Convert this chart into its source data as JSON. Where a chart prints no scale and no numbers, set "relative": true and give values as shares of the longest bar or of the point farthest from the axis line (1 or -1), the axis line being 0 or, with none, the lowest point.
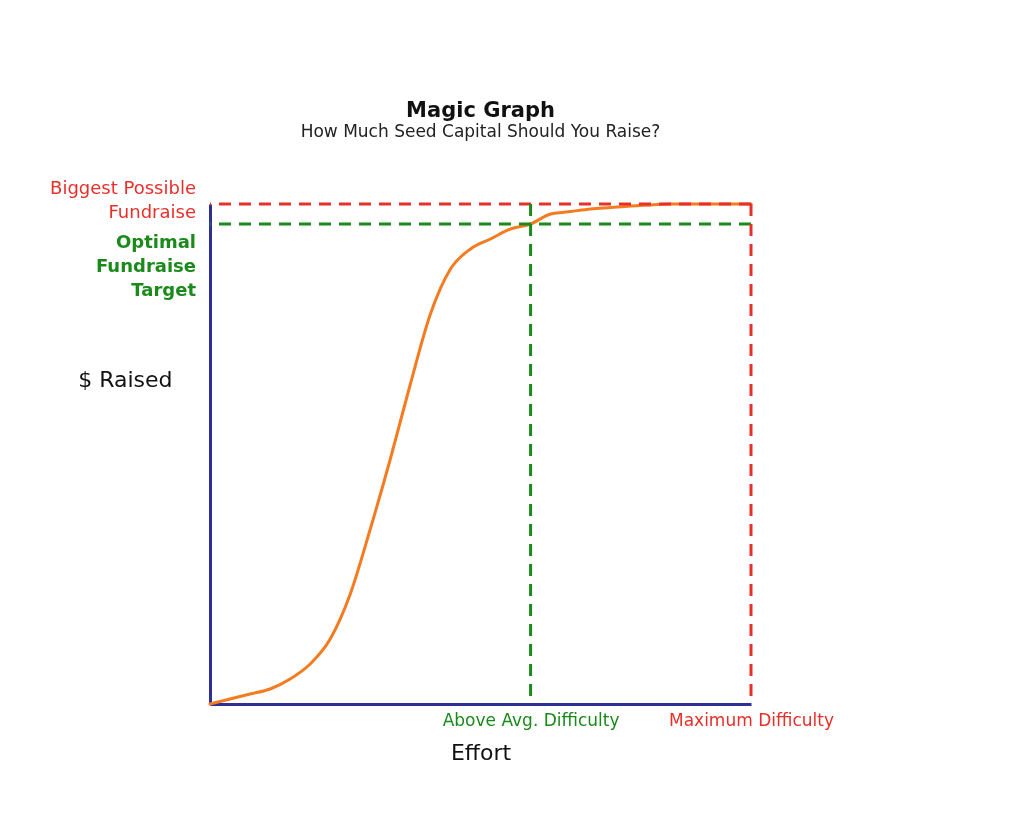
{
  "chart_data": {
    "type": "line",
    "title": "Magic Graph",
    "subtitle": "How Much Seed Capital Should You Raise?",
    "xlabel": "Effort",
    "ylabel": "$ Raised",
    "relative": true,
    "categories": [
      null,
      null,
      null,
      null,
      null,
      null,
      null,
      null,
      null,
      null,
      null,
      null,
      null,
      null,
      null,
      null,
      "Above Avg. Difficulty",
      null,
      null,
      null,
      null,
      null,
      null,
      null,
      null,
      null,
      null,
      "Maximum Difficulty"
    ],
    "series": [
      {
        "color": "#f47b20",
        "values": [
          0,
          0.01,
          0.02,
          0.03,
          0.05,
          0.08,
          0.13,
          0.22,
          0.35,
          0.49,
          0.64,
          0.78,
          0.87,
          0.91,
          0.93,
          0.95,
          0.96,
          0.98,
          0.985,
          0.99,
          0.993,
          0.996,
          0.998,
          1.0,
          1.0,
          1.0,
          1.0,
          1.0
        ]
      }
    ],
    "ref_lines": [
      {
        "axis": "y",
        "value": 1.0,
        "label": "Biggest Possible Fundraise",
        "color": "#e8302a",
        "line_style": "dashed"
      },
      {
        "axis": "y",
        "value": 0.96,
        "label": "Optimal Fundraise Target",
        "color": "#1a8a1a",
        "line_style": "dashed"
      },
      {
        "axis": "x",
        "value": "Above Avg. Difficulty",
        "color": "#1a8a1a",
        "line_style": "dashed"
      },
      {
        "axis": "x",
        "value": "Maximum Difficulty",
        "color": "#e8302a",
        "line_style": "dashed"
      }
    ],
    "marker": "none",
    "line_style": "solid"
  }
}
